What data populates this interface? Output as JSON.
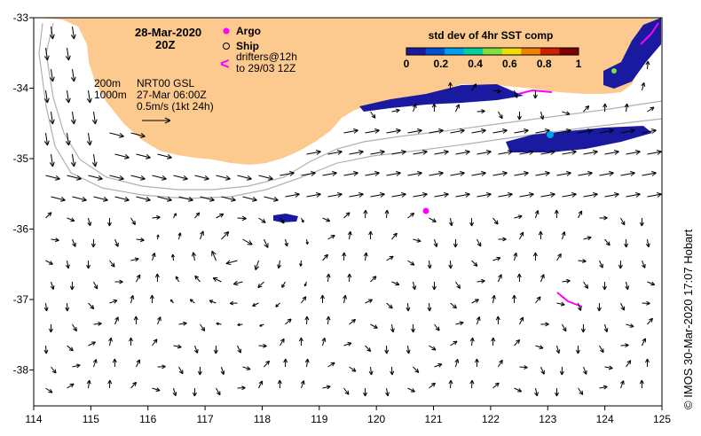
{
  "map": {
    "lon_ticks": [
      "114",
      "115",
      "116",
      "117",
      "118",
      "119",
      "120",
      "121",
      "122",
      "123",
      "124",
      "125"
    ],
    "lat_ticks": [
      "-33",
      "-34",
      "-35",
      "-36",
      "-37",
      "-38"
    ],
    "land_color": "#fcc98f",
    "vector_scale_label": "0.5m/s (1kt 24h)"
  },
  "legend": {
    "date": "28-Mar-2020",
    "time": "20Z",
    "argo_label": "Argo",
    "ship_label": "Ship",
    "drifters_line1": "drifters@12h",
    "drifters_line2": "to 29/03 12Z",
    "arrow_symbol": "<",
    "contour_200": "200m",
    "contour_1000": "1000m",
    "product": "NRT00 GSL",
    "product_time": "27-Mar 06:00Z"
  },
  "colorbar": {
    "title": "std dev of 4hr SST comp",
    "ticks": [
      "0",
      "0.2",
      "0.4",
      "0.6",
      "0.8",
      "1"
    ],
    "colors": [
      "#1a1aa0",
      "#0050d0",
      "#00a0f0",
      "#00d0a0",
      "#80e040",
      "#f0e000",
      "#f08000",
      "#d02000",
      "#800000"
    ]
  },
  "credit": "© IMOS 30-Mar-2020 17:07 Hobart"
}
